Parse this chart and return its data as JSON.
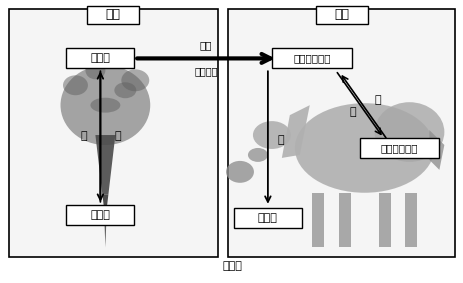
{
  "title_caption": "図　１",
  "left_box_title": "植物",
  "right_box_title": "動物",
  "left_top_box": "有機物",
  "left_bottom_box": "無機物",
  "right_top_box": "単純な有機物",
  "right_right_box": "複雑な有機物",
  "arrow_label_top": "摂食",
  "arrow_label_bottom": "消化分解",
  "label_ke": "ケ",
  "label_ko": "コ",
  "label_sa": "サ",
  "label_shi": "シ",
  "label_su": "ス",
  "bg_color": "#ffffff",
  "box_facecolor": "#ffffff",
  "box_edgecolor": "#000000",
  "font_size_title": 9,
  "font_size_label": 8,
  "font_size_small": 7.5,
  "font_size_caption": 8
}
